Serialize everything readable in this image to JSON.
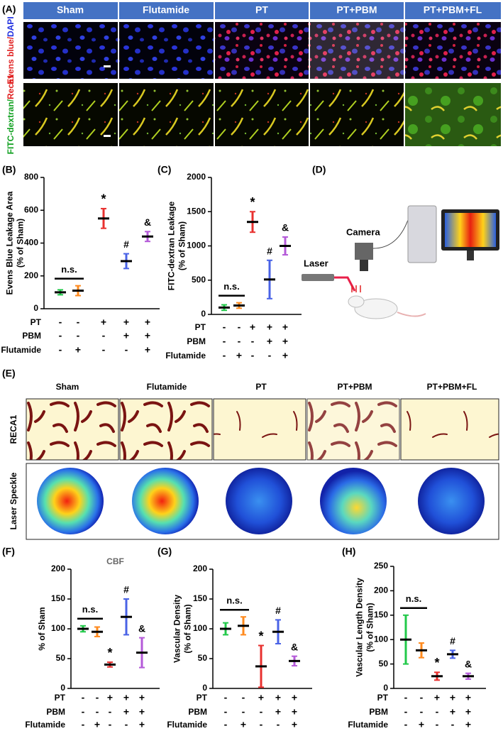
{
  "panel_labels": [
    "(A)",
    "(B)",
    "(C)",
    "(D)",
    "(E)",
    "(F)",
    "(G)",
    "(H)"
  ],
  "figure_a": {
    "columns": [
      "Sham",
      "Flutamide",
      "PT",
      "PT+PBM",
      "PT+PBM+FL"
    ],
    "rows": [
      [
        "Evens blue/",
        "DAPI"
      ],
      [
        "FITC-dextran/",
        "Reca1"
      ]
    ]
  },
  "figure_d": {
    "camera": "Camera",
    "laser": "Laser"
  },
  "figure_e": {
    "columns": [
      "Sham",
      "Flutamide",
      "PT",
      "PT+PBM",
      "PT+PBM+FL"
    ],
    "rows": [
      "RECA1",
      "Laser Speckle"
    ]
  },
  "chart_data": [
    {
      "type": "dot",
      "y_label": [
        "Evens Blue Leakage Area",
        "(% of Sham)"
      ],
      "values": [
        100,
        110,
        550,
        290,
        440
      ],
      "errors": [
        15,
        30,
        60,
        45,
        30
      ],
      "colors": [
        "#22c94a",
        "#ff8a1e",
        "#e8312f",
        "#4a63e6",
        "#b45ad8"
      ],
      "ylim": [
        0,
        800
      ],
      "yticks": [
        0,
        200,
        400,
        600,
        800
      ],
      "annotations": [
        "n.s.",
        null,
        "*",
        "#",
        "&"
      ],
      "conditions": {
        "rows": [
          "PT",
          "PBM",
          "Flutamide"
        ],
        "signs": [
          [
            "-",
            "-",
            "+",
            "+",
            "+"
          ],
          [
            "-",
            "-",
            "-",
            "+",
            "+"
          ],
          [
            "-",
            "+",
            "-",
            "-",
            "+"
          ]
        ]
      }
    },
    {
      "type": "dot",
      "y_label": [
        "FITC-dextran Leakage",
        "(% of Sham)"
      ],
      "values": [
        100,
        130,
        1350,
        510,
        1000
      ],
      "errors": [
        40,
        40,
        150,
        280,
        130
      ],
      "colors": [
        "#22c94a",
        "#ff8a1e",
        "#e8312f",
        "#4a63e6",
        "#b45ad8"
      ],
      "ylim": [
        0,
        2000
      ],
      "yticks": [
        0,
        500,
        1000,
        1500,
        2000
      ],
      "annotations": [
        "n.s.",
        null,
        "*",
        "#",
        "&"
      ],
      "conditions": {
        "rows": [
          "PT",
          "PBM",
          "Flutamide"
        ],
        "signs": [
          [
            "-",
            "-",
            "+",
            "+",
            "+"
          ],
          [
            "-",
            "-",
            "-",
            "+",
            "+"
          ],
          [
            "-",
            "+",
            "-",
            "-",
            "+"
          ]
        ]
      }
    },
    {
      "type": "dot",
      "title": "CBF",
      "y_label": [
        "% of Sham"
      ],
      "values": [
        100,
        95,
        40,
        120,
        60
      ],
      "errors": [
        5,
        8,
        4,
        30,
        25
      ],
      "colors": [
        "#22c94a",
        "#ff8a1e",
        "#e8312f",
        "#4a63e6",
        "#b45ad8"
      ],
      "ylim": [
        0,
        200
      ],
      "yticks": [
        0,
        50,
        100,
        150,
        200
      ],
      "annotations": [
        "n.s.",
        null,
        "*",
        "#",
        "&"
      ],
      "conditions": {
        "rows": [
          "PT",
          "PBM",
          "Flutamide"
        ],
        "signs": [
          [
            "-",
            "-",
            "+",
            "+",
            "+"
          ],
          [
            "-",
            "-",
            "-",
            "+",
            "+"
          ],
          [
            "-",
            "+",
            "-",
            "-",
            "+"
          ]
        ]
      }
    },
    {
      "type": "dot",
      "y_label": [
        "Vascular Density",
        "(% of Sham)"
      ],
      "values": [
        100,
        105,
        37,
        95,
        46
      ],
      "errors": [
        10,
        15,
        35,
        20,
        8
      ],
      "colors": [
        "#22c94a",
        "#ff8a1e",
        "#e8312f",
        "#4a63e6",
        "#b45ad8"
      ],
      "ylim": [
        0,
        200
      ],
      "yticks": [
        0,
        50,
        100,
        150,
        200
      ],
      "annotations": [
        "n.s.",
        null,
        "*",
        "#",
        "&"
      ],
      "conditions": {
        "rows": [
          "PT",
          "PBM",
          "Flutamide"
        ],
        "signs": [
          [
            "-",
            "-",
            "+",
            "+",
            "+"
          ],
          [
            "-",
            "-",
            "-",
            "+",
            "+"
          ],
          [
            "-",
            "+",
            "-",
            "-",
            "+"
          ]
        ]
      }
    },
    {
      "type": "dot",
      "y_label": [
        "Vascular Length Density",
        "(% of Sham)"
      ],
      "values": [
        100,
        78,
        25,
        70,
        25
      ],
      "errors": [
        50,
        15,
        8,
        8,
        6
      ],
      "colors": [
        "#22c94a",
        "#ff8a1e",
        "#e8312f",
        "#4a63e6",
        "#b45ad8"
      ],
      "ylim": [
        0,
        250
      ],
      "yticks": [
        0,
        50,
        100,
        150,
        200,
        250
      ],
      "annotations": [
        "n.s.",
        null,
        "*",
        "#",
        "&"
      ],
      "conditions": {
        "rows": [
          "PT",
          "PBM",
          "Flutamide"
        ],
        "signs": [
          [
            "-",
            "-",
            "+",
            "+",
            "+"
          ],
          [
            "-",
            "-",
            "-",
            "+",
            "+"
          ],
          [
            "-",
            "+",
            "-",
            "-",
            "+"
          ]
        ]
      }
    }
  ]
}
